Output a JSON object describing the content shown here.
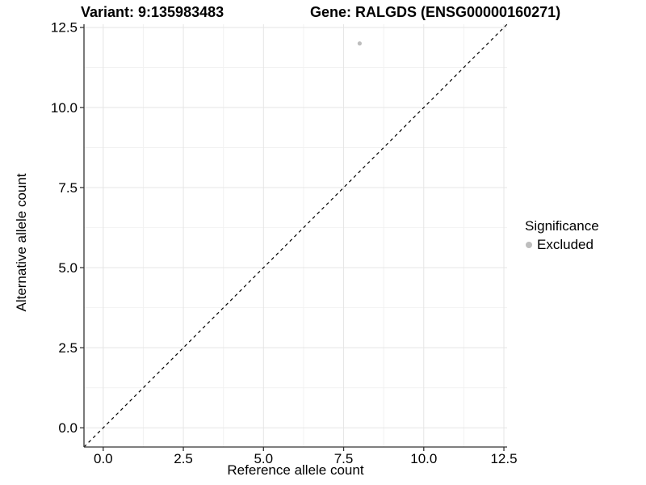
{
  "header": {
    "variant_title": "Variant: 9:135983483",
    "gene_title": "Gene: RALGDS (ENSG00000160271)"
  },
  "chart_data": {
    "type": "scatter",
    "title": "Variant: 9:135983483   Gene: RALGDS (ENSG00000160271)",
    "xlabel": "Reference allele count",
    "ylabel": "Alternative allele count",
    "xlim": [
      -0.6,
      12.6
    ],
    "ylim": [
      -0.6,
      12.6
    ],
    "x_ticks": [
      0.0,
      2.5,
      5.0,
      7.5,
      10.0,
      12.5
    ],
    "y_ticks": [
      0.0,
      2.5,
      5.0,
      7.5,
      10.0,
      12.5
    ],
    "x_tick_labels": [
      "0.0",
      "2.5",
      "5.0",
      "7.5",
      "10.0",
      "12.5"
    ],
    "y_tick_labels": [
      "0.0",
      "2.5",
      "5.0",
      "7.5",
      "10.0",
      "12.5"
    ],
    "x_minor_ticks": [
      1.25,
      3.75,
      6.25,
      8.75,
      11.25
    ],
    "y_minor_ticks": [
      1.25,
      3.75,
      6.25,
      8.75,
      11.25
    ],
    "grid": true,
    "legend_position": "right",
    "series": [
      {
        "name": "Excluded",
        "color": "#bebebe",
        "points": [
          {
            "x": 8,
            "y": 12
          }
        ]
      }
    ],
    "identity_line": {
      "style": "dashed",
      "from": -0.6,
      "to": 12.6,
      "color": "#000000"
    },
    "legend": {
      "title": "Significance",
      "entries": [
        {
          "label": "Excluded",
          "color": "#bebebe"
        }
      ]
    }
  },
  "style": {
    "point_color": "#bebebe",
    "grid_major_color": "#e5e5e5",
    "grid_minor_color": "#f2f2f2",
    "axis_line_color": "#333333",
    "tick_color": "#333333",
    "text_color": "#000000",
    "background_color": "#ffffff"
  }
}
